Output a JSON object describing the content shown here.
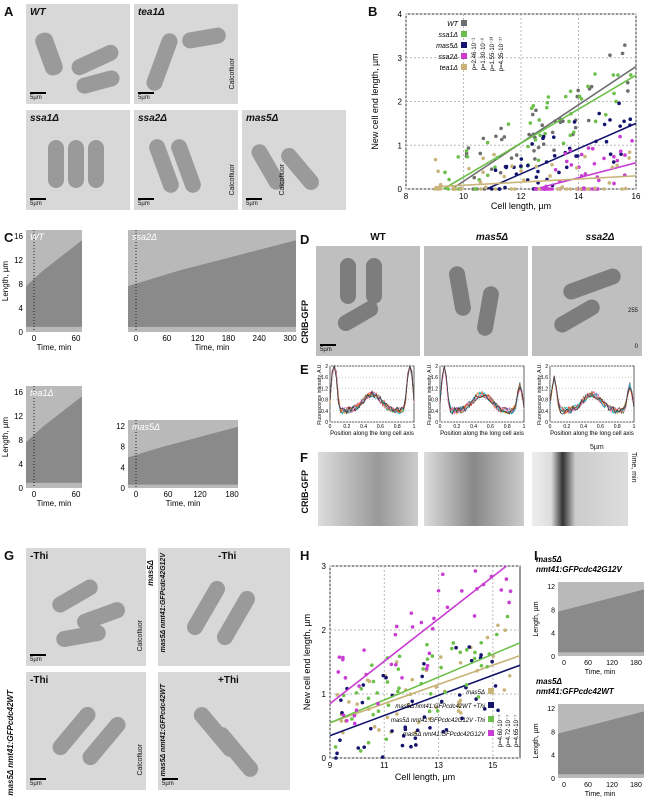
{
  "panels": {
    "A": "A",
    "B": "B",
    "C": "C",
    "D": "D",
    "E": "E",
    "F": "F",
    "G": "G",
    "H": "H",
    "I": "I"
  },
  "a_images": [
    {
      "label": "WT",
      "stain": "Calcofluor",
      "scale": "5µm"
    },
    {
      "label": "tea1Δ",
      "stain": "Calcofluor",
      "scale": "5µm"
    },
    {
      "label": "ssa1Δ",
      "stain": "Calcofluor",
      "scale": "5µm"
    },
    {
      "label": "ssa2Δ",
      "stain": "Calcofluor",
      "scale": "5µm"
    },
    {
      "label": "mas5Δ",
      "stain": "Calcofluor",
      "scale": "5µm"
    }
  ],
  "b_chart": {
    "type": "scatter",
    "xlabel": "Cell length, µm",
    "ylabel": "New cell end length, µm",
    "xlim": [
      8,
      16
    ],
    "ylim": [
      0,
      4
    ],
    "xticks": [
      "8",
      "10",
      "12",
      "14",
      "16"
    ],
    "yticks": [
      "0",
      "1",
      "2",
      "3",
      "4"
    ],
    "legend": [
      "WT",
      "ssa1Δ",
      "mas5Δ",
      "ssa2Δ",
      "tea1Δ"
    ],
    "pvalues": [
      "p=2.46·10⁻¹",
      "p=1.30·10⁻⁶",
      "p=1.55·10⁻¹³",
      "p=4.35·10⁻¹⁷"
    ],
    "colors": [
      "#6e6e6e",
      "#6cc04a",
      "#14146e",
      "#c83cd2",
      "#c8b478"
    ]
  },
  "c_kymo": [
    {
      "label": "WT",
      "xlabel": "Time, min",
      "ylabel": "Length, µm",
      "xticks": [
        "0",
        "60"
      ],
      "yticks": [
        "0",
        "4",
        "8",
        "12",
        "16"
      ]
    },
    {
      "label": "ssa2Δ",
      "xlabel": "Time, min",
      "xticks": [
        "0",
        "60",
        "120",
        "180",
        "240",
        "300"
      ]
    },
    {
      "label": "tea1Δ",
      "xlabel": "Time, min",
      "ylabel": "Length, µm",
      "xticks": [
        "0",
        "60"
      ],
      "yticks": [
        "0",
        "4",
        "8",
        "12",
        "16"
      ]
    },
    {
      "label": "mas5Δ",
      "xlabel": "Time, min",
      "xticks": [
        "0",
        "60",
        "120",
        "180"
      ],
      "yticks": [
        "0",
        "4",
        "8",
        "12"
      ]
    }
  ],
  "d_images": {
    "row_label": "CRIB-GFP",
    "cols": [
      "WT",
      "mas5Δ",
      "ssa2Δ"
    ],
    "scale": "5µm",
    "bar_max": "255",
    "bar_min": "0"
  },
  "e_chart": {
    "ylabel": "Fluorescence intensity, A.U.",
    "xlabel": "Position along the long cell axis",
    "xticks": [
      "0",
      "0.2",
      "0.4",
      "0.6",
      "0.8",
      "1"
    ],
    "yticks": [
      "0",
      "0.4",
      "0.8",
      "1.2",
      "1.6",
      "2"
    ]
  },
  "f_kymo": {
    "row_label": "CRIB-GFP",
    "scale": "5µm",
    "time_label": "Time, min",
    "ticks": [
      "0",
      "30",
      "60",
      "90"
    ]
  },
  "g_images": [
    {
      "cond": "-Thi",
      "strain": "mas5Δ",
      "stain": "Calcofluor",
      "scale": "5µm"
    },
    {
      "cond": "-Thi",
      "strain": "mas5Δ nmt41:GFPcdc42G12V",
      "stain": "Calcofluor",
      "scale": "5µm"
    },
    {
      "cond": "-Thi",
      "strain": "mas5Δ nmt41:GFPcdc42WT",
      "stain": "Calcofluor",
      "scale": "5µm"
    },
    {
      "cond": "+Thi",
      "strain": "mas5Δ nmt41:GFPcdc42WT",
      "stain": "Calcofluor",
      "scale": "5µm"
    }
  ],
  "h_chart": {
    "type": "scatter",
    "xlabel": "Cell length, µm",
    "ylabel": "New cell end length, µm",
    "xlim": [
      9,
      16
    ],
    "ylim": [
      0,
      3
    ],
    "xticks": [
      "9",
      "11",
      "13",
      "15"
    ],
    "yticks": [
      "0",
      "1",
      "2",
      "3"
    ],
    "legend": [
      "mas5Δ",
      "mas5Δ nmt41:GFPcdc42WT +Thi",
      "mas5Δ nmt41:GFPcdc42G12V -Thi",
      "mas5Δ nmt41:GFPcdc42G12V"
    ],
    "pvalues": [
      "p=4.60·10⁻⁷",
      "p=4.72·10⁻⁷",
      "p=4.65·10⁻⁷"
    ],
    "colors": [
      "#c8b478",
      "#14146e",
      "#6cc04a",
      "#c83cd2"
    ]
  },
  "i_kymo": [
    {
      "title": "mas5Δ nmt41:GFPcdc42G12V",
      "xlabel": "Time, min",
      "ylabel": "Length, µm",
      "xticks": [
        "0",
        "60",
        "120",
        "180"
      ],
      "yticks": [
        "0",
        "4",
        "8",
        "12"
      ]
    },
    {
      "title": "mas5Δ nmt41:GFPcdc42WT",
      "xlabel": "Time, min",
      "ylabel": "Length, µm",
      "xticks": [
        "0",
        "60",
        "120",
        "180"
      ],
      "yticks": [
        "0",
        "4",
        "8",
        "12"
      ]
    }
  ]
}
